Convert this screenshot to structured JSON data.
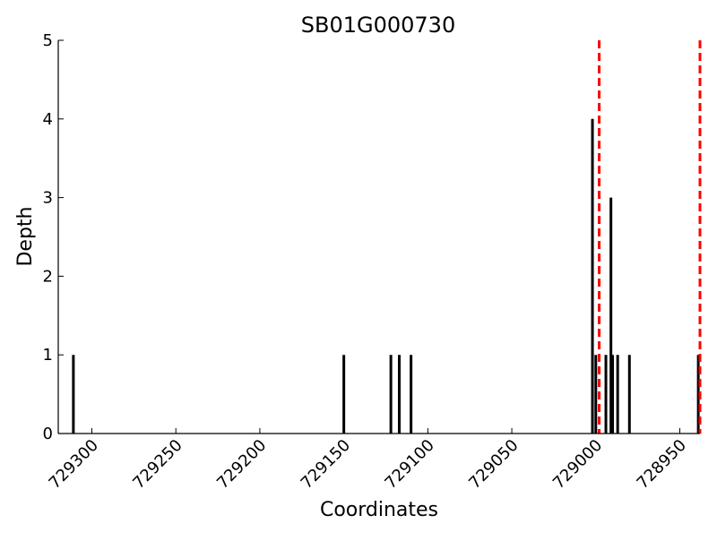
{
  "chart_data": {
    "type": "bar",
    "title": "SB01G000730",
    "xlabel": "Coordinates",
    "ylabel": "Depth",
    "xlim": [
      729320,
      728938
    ],
    "ylim": [
      0,
      5
    ],
    "x_ticks": [
      729300,
      729250,
      729200,
      729150,
      729100,
      729050,
      729000,
      728950
    ],
    "x_tick_labels": [
      "729300",
      "729250",
      "729200",
      "729150",
      "729100",
      "729050",
      "729000",
      "728950"
    ],
    "y_ticks": [
      0,
      1,
      2,
      3,
      4,
      5
    ],
    "y_tick_labels": [
      "0",
      "1",
      "2",
      "3",
      "4",
      "5"
    ],
    "bar_color": "#000000",
    "bars": [
      {
        "x": 729311,
        "y": 1
      },
      {
        "x": 729150,
        "y": 1
      },
      {
        "x": 729122,
        "y": 1
      },
      {
        "x": 729117,
        "y": 1
      },
      {
        "x": 729110,
        "y": 1
      },
      {
        "x": 729002,
        "y": 4
      },
      {
        "x": 729000,
        "y": 1
      },
      {
        "x": 728994,
        "y": 1
      },
      {
        "x": 728991,
        "y": 3
      },
      {
        "x": 728990,
        "y": 1
      },
      {
        "x": 728987,
        "y": 1
      },
      {
        "x": 728980,
        "y": 1
      },
      {
        "x": 728939,
        "y": 1
      }
    ],
    "reference_lines": [
      {
        "x": 728998,
        "color": "#ff0000",
        "style": "dashed"
      },
      {
        "x": 728938,
        "color": "#ff0000",
        "style": "dashed"
      }
    ],
    "grid": false,
    "legend": false
  }
}
